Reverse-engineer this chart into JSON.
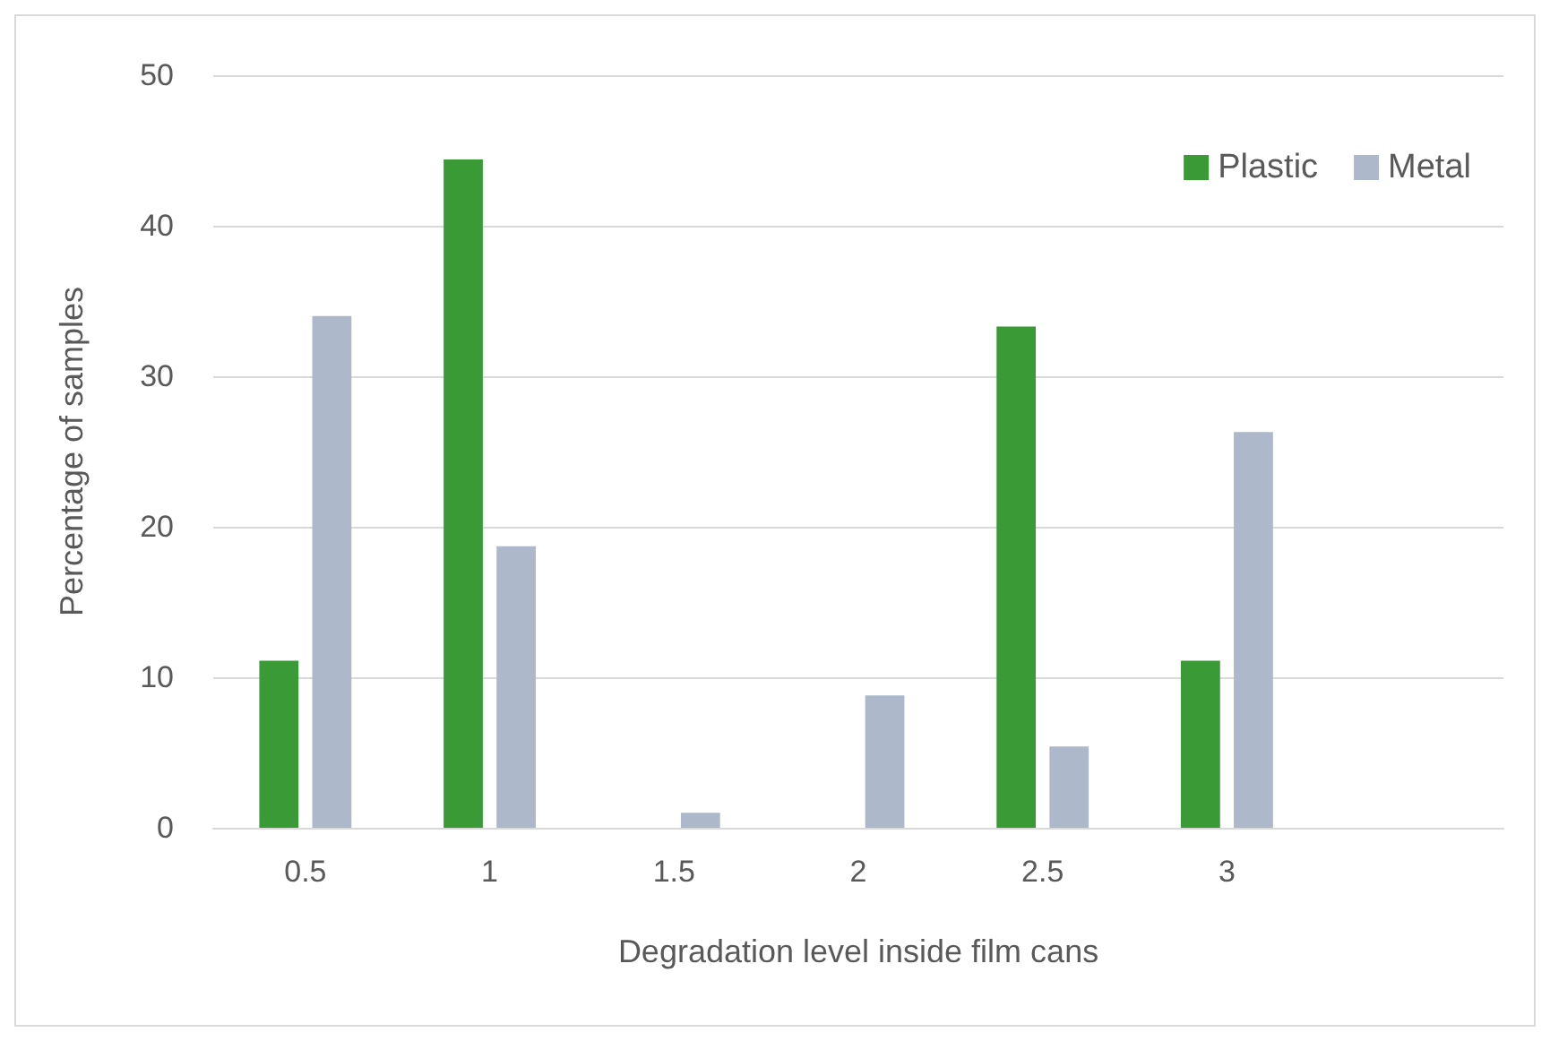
{
  "chart_data": {
    "type": "bar",
    "xlabel": "Degradation level inside film cans",
    "ylabel": "Percentage of samples",
    "categories": [
      "0.5",
      "1",
      "1.5",
      "2",
      "2.5",
      "3",
      null
    ],
    "series": [
      {
        "name": "Plastic",
        "color": "#3a9a35",
        "values": [
          11.1,
          44.4,
          0,
          0,
          33.3,
          11.1,
          null
        ]
      },
      {
        "name": "Metal",
        "color": "#adb9ca",
        "values": [
          34,
          18.7,
          1,
          8.8,
          5.4,
          26.3,
          null
        ]
      }
    ],
    "ylim": [
      0,
      50
    ],
    "yticks": [
      0,
      10,
      20,
      30,
      40,
      50
    ],
    "grid": "y",
    "legend": "top right"
  }
}
